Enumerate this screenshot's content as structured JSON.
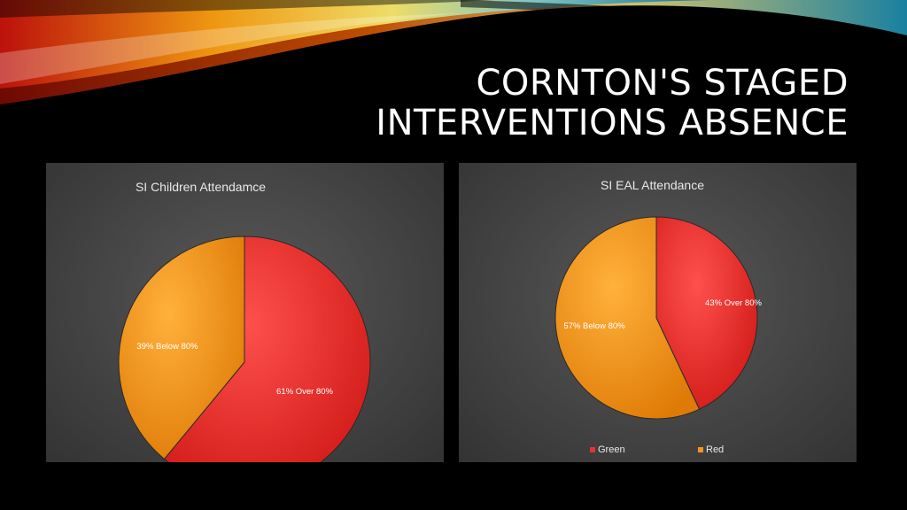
{
  "slide": {
    "title_line1": "CORNTON'S  STAGED",
    "title_line2": "INTERVENTIONS ABSENCE"
  },
  "colors": {
    "red": "#e8322f",
    "orange": "#f7931e",
    "panel": "#4a4a4a"
  },
  "chart_data": [
    {
      "type": "pie",
      "title": "SI Children Attendamce",
      "slices": [
        {
          "label": "61% Over 80%",
          "value": 61,
          "color": "#e8322f"
        },
        {
          "label": "39% Below 80%",
          "value": 39,
          "color": "#f7931e"
        }
      ]
    },
    {
      "type": "pie",
      "title": "SI EAL Attendance",
      "slices": [
        {
          "label": "43% Over 80%",
          "value": 43,
          "color": "#e8322f"
        },
        {
          "label": "57% Below 80%",
          "value": 57,
          "color": "#f7931e"
        }
      ],
      "legend": [
        {
          "name": "Green",
          "color": "#e8322f"
        },
        {
          "name": "Red",
          "color": "#f7931e"
        }
      ],
      "legend_position": "bottom"
    }
  ]
}
